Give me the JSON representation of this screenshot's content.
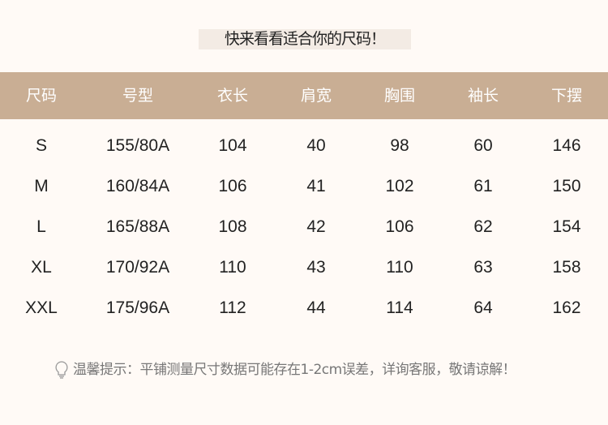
{
  "title": "快来看看适合你的尺码！",
  "colors": {
    "header_bg": "#c9ae94",
    "header_text": "#ffffff",
    "page_bg": "#fffaf6",
    "title_bg": "#f3ebe4"
  },
  "table": {
    "headers": [
      "尺码",
      "号型",
      "衣长",
      "肩宽",
      "胸围",
      "袖长",
      "下摆"
    ],
    "rows": [
      [
        "S",
        "155/80A",
        "104",
        "40",
        "98",
        "60",
        "146"
      ],
      [
        "M",
        "160/84A",
        "106",
        "41",
        "102",
        "61",
        "150"
      ],
      [
        "L",
        "165/88A",
        "108",
        "42",
        "106",
        "62",
        "154"
      ],
      [
        "XL",
        "170/92A",
        "110",
        "43",
        "110",
        "63",
        "158"
      ],
      [
        "XXL",
        "175/96A",
        "112",
        "44",
        "114",
        "64",
        "162"
      ]
    ]
  },
  "note": {
    "icon": "lightbulb-icon",
    "text": "温馨提示：平铺测量尺寸数据可能存在1-2cm误差，详询客服，敬请谅解！"
  }
}
